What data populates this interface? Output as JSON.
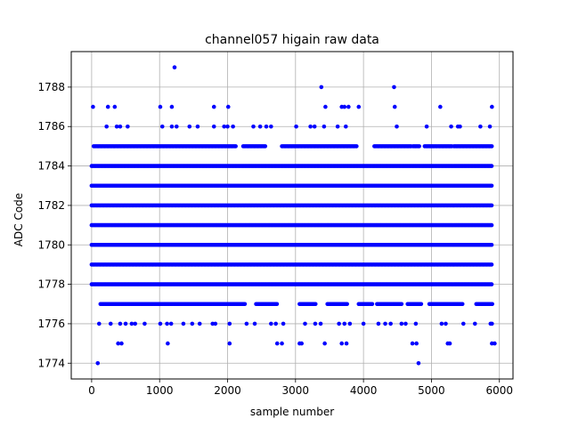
{
  "chart_data": {
    "type": "scatter",
    "title": "channel057 higain raw data",
    "xlabel": "sample number",
    "ylabel": "ADC Code",
    "xlim": [
      -300,
      6200
    ],
    "ylim": [
      1773.2,
      1789.8
    ],
    "xticks": [
      0,
      1000,
      2000,
      3000,
      4000,
      5000,
      6000
    ],
    "yticks": [
      1774,
      1776,
      1778,
      1780,
      1782,
      1784,
      1786,
      1788
    ],
    "grid": true,
    "marker_color": "#0000ff",
    "sample_range": [
      0,
      5900
    ],
    "dense_levels": [
      1778,
      1779,
      1780,
      1781,
      1782,
      1783,
      1784
    ],
    "series": [
      {
        "values_by_level": [
          {
            "y": 1785,
            "x_segments": [
              [
                30,
                1200
              ],
              [
                1220,
                2130
              ],
              [
                2230,
                2560
              ],
              [
                2800,
                3900
              ],
              [
                4160,
                4700
              ],
              [
                4730,
                4820
              ],
              [
                4900,
                5080
              ],
              [
                5100,
                5300
              ],
              [
                5330,
                5900
              ]
            ]
          },
          {
            "y": 1777,
            "x_segments": [
              [
                130,
                2270
              ],
              [
                2420,
                2730
              ],
              [
                3060,
                3300
              ],
              [
                3470,
                3760
              ],
              [
                3930,
                4130
              ],
              [
                4200,
                4560
              ],
              [
                4650,
                4860
              ],
              [
                4970,
                5460
              ],
              [
                5660,
                5910
              ]
            ]
          }
        ],
        "points": [
          [
            20,
            1787
          ],
          [
            240,
            1787
          ],
          [
            340,
            1787
          ],
          [
            1010,
            1787
          ],
          [
            1180,
            1787
          ],
          [
            1800,
            1787
          ],
          [
            2010,
            1787
          ],
          [
            3440,
            1787
          ],
          [
            3680,
            1787
          ],
          [
            3720,
            1787
          ],
          [
            3780,
            1787
          ],
          [
            3930,
            1787
          ],
          [
            4460,
            1787
          ],
          [
            5130,
            1787
          ],
          [
            5890,
            1787
          ],
          [
            220,
            1786
          ],
          [
            370,
            1786
          ],
          [
            420,
            1786
          ],
          [
            530,
            1786
          ],
          [
            1040,
            1786
          ],
          [
            1180,
            1786
          ],
          [
            1250,
            1786
          ],
          [
            1440,
            1786
          ],
          [
            1560,
            1786
          ],
          [
            1800,
            1786
          ],
          [
            1950,
            1786
          ],
          [
            2000,
            1786
          ],
          [
            2080,
            1786
          ],
          [
            2380,
            1786
          ],
          [
            2480,
            1786
          ],
          [
            2570,
            1786
          ],
          [
            2640,
            1786
          ],
          [
            3010,
            1786
          ],
          [
            3220,
            1786
          ],
          [
            3280,
            1786
          ],
          [
            3420,
            1786
          ],
          [
            3620,
            1786
          ],
          [
            3740,
            1786
          ],
          [
            4490,
            1786
          ],
          [
            4930,
            1786
          ],
          [
            5290,
            1786
          ],
          [
            5390,
            1786
          ],
          [
            5420,
            1786
          ],
          [
            5720,
            1786
          ],
          [
            5860,
            1786
          ],
          [
            3380,
            1788
          ],
          [
            4450,
            1788
          ],
          [
            1220,
            1789
          ],
          [
            110,
            1776
          ],
          [
            280,
            1776
          ],
          [
            420,
            1776
          ],
          [
            500,
            1776
          ],
          [
            590,
            1776
          ],
          [
            640,
            1776
          ],
          [
            780,
            1776
          ],
          [
            1010,
            1776
          ],
          [
            1110,
            1776
          ],
          [
            1170,
            1776
          ],
          [
            1350,
            1776
          ],
          [
            1480,
            1776
          ],
          [
            1590,
            1776
          ],
          [
            1780,
            1776
          ],
          [
            1820,
            1776
          ],
          [
            2030,
            1776
          ],
          [
            2280,
            1776
          ],
          [
            2400,
            1776
          ],
          [
            2640,
            1776
          ],
          [
            2710,
            1776
          ],
          [
            2820,
            1776
          ],
          [
            3140,
            1776
          ],
          [
            3290,
            1776
          ],
          [
            3370,
            1776
          ],
          [
            3640,
            1776
          ],
          [
            3720,
            1776
          ],
          [
            3800,
            1776
          ],
          [
            4000,
            1776
          ],
          [
            4220,
            1776
          ],
          [
            4320,
            1776
          ],
          [
            4400,
            1776
          ],
          [
            4560,
            1776
          ],
          [
            4620,
            1776
          ],
          [
            4770,
            1776
          ],
          [
            5150,
            1776
          ],
          [
            5210,
            1776
          ],
          [
            5470,
            1776
          ],
          [
            5640,
            1776
          ],
          [
            5870,
            1776
          ],
          [
            5890,
            1776
          ],
          [
            390,
            1775
          ],
          [
            440,
            1775
          ],
          [
            1120,
            1775
          ],
          [
            2030,
            1775
          ],
          [
            2730,
            1775
          ],
          [
            2800,
            1775
          ],
          [
            3060,
            1775
          ],
          [
            3090,
            1775
          ],
          [
            3430,
            1775
          ],
          [
            3680,
            1775
          ],
          [
            3750,
            1775
          ],
          [
            4720,
            1775
          ],
          [
            4780,
            1775
          ],
          [
            5240,
            1775
          ],
          [
            5270,
            1775
          ],
          [
            5890,
            1775
          ],
          [
            5930,
            1775
          ],
          [
            90,
            1774
          ],
          [
            4810,
            1774
          ]
        ]
      }
    ]
  }
}
